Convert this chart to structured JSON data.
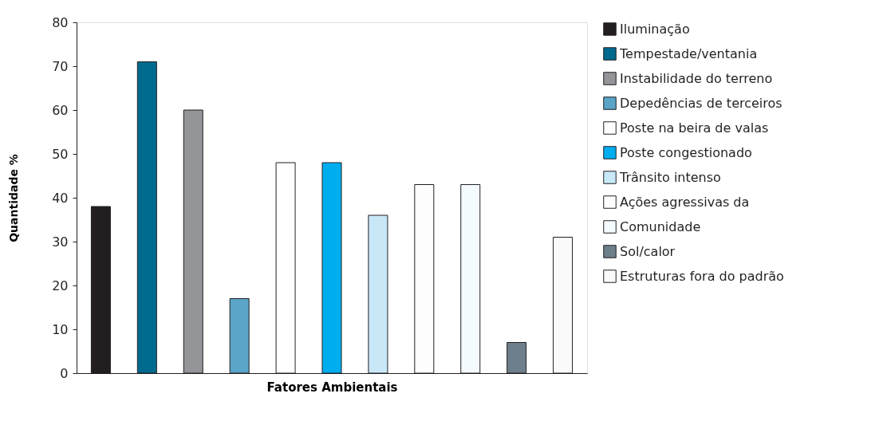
{
  "chart_data": {
    "type": "bar",
    "xlabel": "Fatores Ambientais",
    "ylabel": "Quantidade %",
    "categories": [
      null,
      null,
      null,
      null,
      null,
      null,
      null,
      null,
      null,
      null,
      null
    ],
    "series": [
      {
        "name": "Iluminação",
        "color": "#231f20",
        "values": [
          38,
          null,
          null,
          null,
          null,
          null,
          null,
          null,
          null,
          null,
          null
        ]
      },
      {
        "name": "Tempestade/ventania",
        "color": "#006a8e",
        "values": [
          null,
          71,
          null,
          null,
          null,
          null,
          null,
          null,
          null,
          null,
          null
        ]
      },
      {
        "name": "Instabilidade do terreno",
        "color": "#939598",
        "values": [
          null,
          null,
          60,
          null,
          null,
          null,
          null,
          null,
          null,
          null,
          null
        ]
      },
      {
        "name": "Depedências de terceiros",
        "color": "#5aa5c8",
        "values": [
          null,
          null,
          null,
          17,
          null,
          null,
          null,
          null,
          null,
          null,
          null
        ]
      },
      {
        "name": "Poste na beira de valas",
        "color": "#ffffff",
        "values": [
          null,
          null,
          null,
          null,
          48,
          null,
          null,
          null,
          null,
          null,
          null
        ]
      },
      {
        "name": "Poste congestionado",
        "color": "#00aeef",
        "values": [
          null,
          null,
          null,
          null,
          null,
          48,
          null,
          null,
          null,
          null,
          null
        ]
      },
      {
        "name": "Trânsito intenso",
        "color": "#c8e8f8",
        "values": [
          null,
          null,
          null,
          null,
          null,
          null,
          36,
          null,
          null,
          null,
          null
        ]
      },
      {
        "name": "Ações agressivas da",
        "color": "#fdfdfd",
        "values": [
          null,
          null,
          null,
          null,
          null,
          null,
          null,
          43,
          null,
          null,
          null
        ]
      },
      {
        "name": "Comunidade",
        "color": "#f4fbff",
        "values": [
          null,
          null,
          null,
          null,
          null,
          null,
          null,
          null,
          43,
          null,
          null
        ]
      },
      {
        "name": "Sol/calor",
        "color": "#6d7f8a",
        "values": [
          null,
          null,
          null,
          null,
          null,
          null,
          null,
          null,
          null,
          7,
          null
        ]
      },
      {
        "name": "Estruturas fora do padrão",
        "color": "#fafafa",
        "values": [
          null,
          null,
          null,
          null,
          null,
          null,
          null,
          null,
          null,
          null,
          31
        ]
      }
    ],
    "ylim": [
      0,
      80
    ],
    "yticks": [
      0,
      10,
      20,
      30,
      40,
      50,
      60,
      70,
      80
    ],
    "grid": false,
    "legend": "right",
    "tick_labels": "y"
  }
}
